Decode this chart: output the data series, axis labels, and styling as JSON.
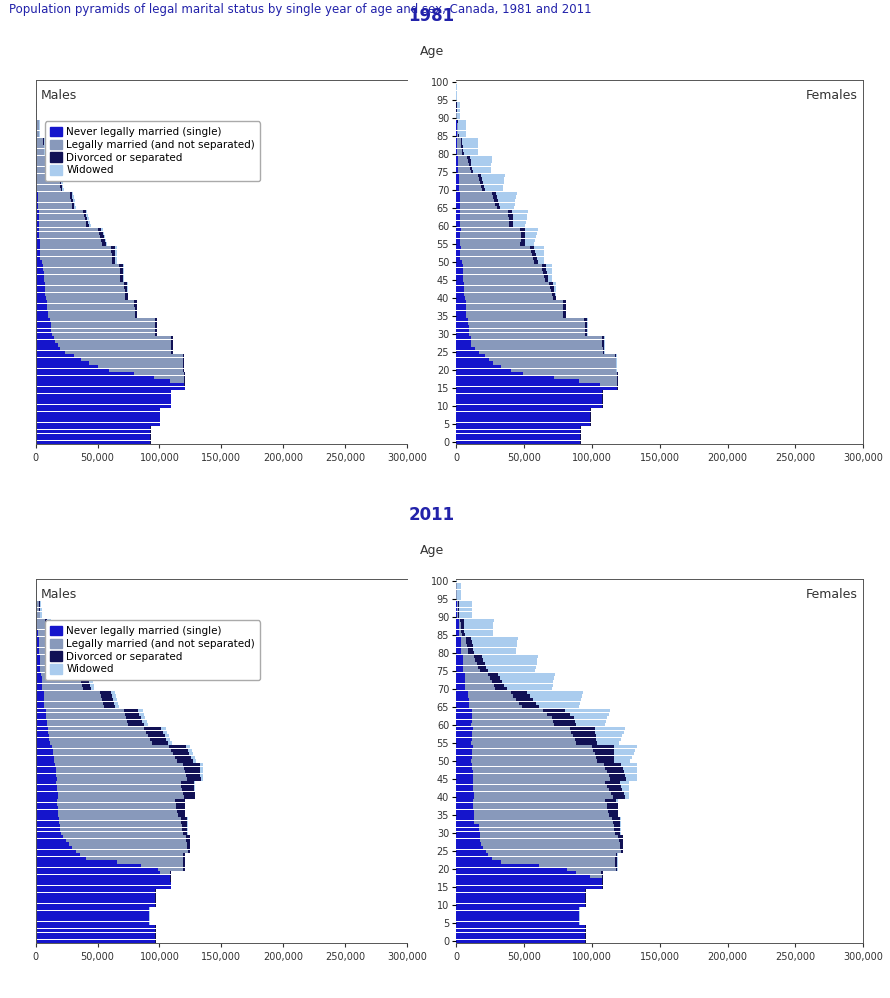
{
  "title": "Population pyramids of legal marital status by single year of age and sex, Canada, 1981 and 2011",
  "title_color": "#2222aa",
  "year1_label": "1981",
  "year2_label": "2011",
  "age_label": "Age",
  "males_label": "Males",
  "females_label": "Females",
  "legend_items": [
    "Never legally married (single)",
    "Legally married (and not separated)",
    "Divorced or separated",
    "Widowed"
  ],
  "c_single": "#1515cc",
  "c_married": "#8899bb",
  "c_divorced": "#111155",
  "c_widowed": "#aaccee",
  "xlim": 300000,
  "background_color": "#ffffff",
  "text_color": "#2222aa"
}
